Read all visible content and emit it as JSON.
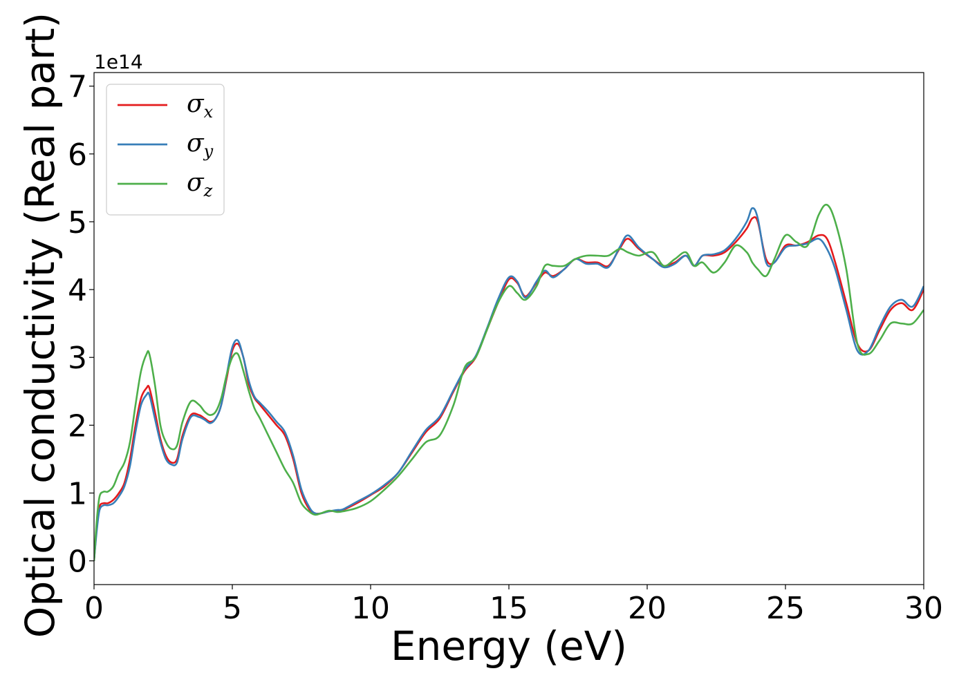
{
  "chart_data": {
    "type": "line",
    "title": "",
    "xlabel": "Energy (eV)",
    "ylabel": "Optical conductivity (Real part)",
    "y_offset_label": "1e14",
    "xlim": [
      0,
      30
    ],
    "ylim": [
      -0.35,
      7.2
    ],
    "xticks": [
      0,
      5,
      10,
      15,
      20,
      25,
      30
    ],
    "yticks": [
      0,
      1,
      2,
      3,
      4,
      5,
      6,
      7
    ],
    "grid": false,
    "legend_position": "top-left",
    "series": [
      {
        "name": "σx",
        "symbol": "σ",
        "subscript": "x",
        "color": "#e41a1c",
        "x": [
          0,
          0.1,
          0.2,
          0.35,
          0.5,
          0.7,
          0.9,
          1.1,
          1.3,
          1.5,
          1.7,
          1.9,
          2.0,
          2.2,
          2.4,
          2.6,
          2.8,
          3.0,
          3.2,
          3.5,
          3.8,
          4.0,
          4.2,
          4.4,
          4.6,
          4.8,
          5.0,
          5.2,
          5.4,
          5.6,
          5.8,
          6.0,
          6.3,
          6.6,
          6.9,
          7.2,
          7.5,
          7.8,
          8.0,
          8.2,
          8.5,
          8.8,
          9.0,
          9.5,
          10.0,
          10.5,
          11.0,
          11.5,
          12.0,
          12.5,
          13.0,
          13.4,
          13.8,
          14.2,
          14.6,
          15.0,
          15.3,
          15.6,
          16.0,
          16.3,
          16.6,
          17.0,
          17.4,
          17.8,
          18.2,
          18.6,
          19.0,
          19.3,
          19.7,
          20.2,
          20.6,
          21.0,
          21.4,
          21.7,
          22.0,
          22.4,
          22.8,
          23.2,
          23.6,
          23.8,
          24.0,
          24.3,
          24.6,
          25.0,
          25.4,
          25.8,
          26.2,
          26.5,
          26.8,
          27.2,
          27.6,
          28.0,
          28.4,
          28.8,
          29.2,
          29.6,
          30.0
        ],
        "y": [
          0.0,
          0.5,
          0.8,
          0.85,
          0.85,
          0.9,
          1.0,
          1.15,
          1.5,
          2.0,
          2.4,
          2.55,
          2.55,
          2.2,
          1.8,
          1.55,
          1.45,
          1.5,
          1.85,
          2.15,
          2.15,
          2.1,
          2.05,
          2.1,
          2.3,
          2.7,
          3.1,
          3.2,
          3.0,
          2.6,
          2.4,
          2.3,
          2.15,
          2.0,
          1.85,
          1.5,
          1.0,
          0.75,
          0.7,
          0.7,
          0.73,
          0.74,
          0.75,
          0.85,
          0.97,
          1.1,
          1.3,
          1.6,
          1.9,
          2.1,
          2.5,
          2.8,
          3.0,
          3.4,
          3.8,
          4.15,
          4.1,
          3.9,
          4.1,
          4.25,
          4.2,
          4.3,
          4.45,
          4.4,
          4.4,
          4.35,
          4.6,
          4.75,
          4.6,
          4.45,
          4.35,
          4.4,
          4.5,
          4.35,
          4.5,
          4.5,
          4.55,
          4.7,
          4.9,
          5.05,
          5.0,
          4.45,
          4.4,
          4.65,
          4.65,
          4.7,
          4.8,
          4.75,
          4.4,
          3.8,
          3.2,
          3.1,
          3.4,
          3.7,
          3.8,
          3.7,
          4.0
        ]
      },
      {
        "name": "σy",
        "symbol": "σ",
        "subscript": "y",
        "color": "#377eb8",
        "x": [
          0,
          0.1,
          0.2,
          0.35,
          0.5,
          0.7,
          0.9,
          1.1,
          1.3,
          1.5,
          1.7,
          1.9,
          2.0,
          2.2,
          2.4,
          2.6,
          2.8,
          3.0,
          3.2,
          3.5,
          3.8,
          4.0,
          4.2,
          4.4,
          4.6,
          4.8,
          5.0,
          5.2,
          5.4,
          5.6,
          5.8,
          6.0,
          6.3,
          6.6,
          6.9,
          7.2,
          7.5,
          7.8,
          8.0,
          8.2,
          8.5,
          8.8,
          9.0,
          9.5,
          10.0,
          10.5,
          11.0,
          11.5,
          12.0,
          12.5,
          13.0,
          13.4,
          13.8,
          14.2,
          14.6,
          15.0,
          15.3,
          15.6,
          16.0,
          16.3,
          16.6,
          17.0,
          17.4,
          17.8,
          18.2,
          18.6,
          19.0,
          19.3,
          19.7,
          20.2,
          20.6,
          21.0,
          21.4,
          21.7,
          22.0,
          22.4,
          22.8,
          23.2,
          23.6,
          23.8,
          24.0,
          24.3,
          24.6,
          25.0,
          25.4,
          25.8,
          26.2,
          26.5,
          26.8,
          27.2,
          27.6,
          28.0,
          28.4,
          28.8,
          29.2,
          29.6,
          30.0
        ],
        "y": [
          0.0,
          0.45,
          0.75,
          0.82,
          0.82,
          0.85,
          0.95,
          1.1,
          1.4,
          1.9,
          2.3,
          2.45,
          2.45,
          2.1,
          1.75,
          1.5,
          1.42,
          1.45,
          1.8,
          2.12,
          2.12,
          2.08,
          2.03,
          2.1,
          2.3,
          2.75,
          3.15,
          3.25,
          3.0,
          2.65,
          2.42,
          2.33,
          2.2,
          2.05,
          1.9,
          1.55,
          1.05,
          0.78,
          0.7,
          0.7,
          0.73,
          0.75,
          0.76,
          0.87,
          0.98,
          1.12,
          1.3,
          1.62,
          1.93,
          2.13,
          2.52,
          2.82,
          3.02,
          3.42,
          3.85,
          4.18,
          4.12,
          3.88,
          4.12,
          4.28,
          4.18,
          4.3,
          4.45,
          4.38,
          4.38,
          4.33,
          4.62,
          4.8,
          4.62,
          4.45,
          4.33,
          4.38,
          4.5,
          4.35,
          4.5,
          4.52,
          4.58,
          4.75,
          5.0,
          5.2,
          5.05,
          4.4,
          4.4,
          4.62,
          4.65,
          4.68,
          4.75,
          4.6,
          4.3,
          3.7,
          3.1,
          3.1,
          3.45,
          3.75,
          3.85,
          3.75,
          4.05
        ]
      },
      {
        "name": "σz",
        "symbol": "σ",
        "subscript": "z",
        "color": "#4daf4a",
        "x": [
          0,
          0.1,
          0.2,
          0.35,
          0.5,
          0.7,
          0.9,
          1.1,
          1.3,
          1.5,
          1.7,
          1.9,
          2.0,
          2.2,
          2.4,
          2.6,
          2.8,
          3.0,
          3.2,
          3.5,
          3.8,
          4.0,
          4.2,
          4.4,
          4.6,
          4.8,
          5.0,
          5.2,
          5.4,
          5.6,
          5.8,
          6.0,
          6.3,
          6.6,
          6.9,
          7.2,
          7.5,
          7.8,
          8.0,
          8.2,
          8.5,
          8.8,
          9.0,
          9.5,
          10.0,
          10.5,
          11.0,
          11.5,
          12.0,
          12.5,
          13.0,
          13.4,
          13.8,
          14.2,
          14.6,
          15.0,
          15.3,
          15.6,
          16.0,
          16.3,
          16.6,
          17.0,
          17.4,
          17.8,
          18.2,
          18.6,
          19.0,
          19.3,
          19.7,
          20.2,
          20.6,
          21.0,
          21.4,
          21.7,
          22.0,
          22.4,
          22.8,
          23.2,
          23.6,
          23.8,
          24.0,
          24.3,
          24.6,
          25.0,
          25.4,
          25.8,
          26.2,
          26.5,
          26.8,
          27.2,
          27.6,
          28.0,
          28.4,
          28.8,
          29.2,
          29.6,
          30.0
        ],
        "y": [
          0.0,
          0.6,
          0.95,
          1.02,
          1.02,
          1.1,
          1.3,
          1.45,
          1.75,
          2.3,
          2.8,
          3.05,
          3.05,
          2.6,
          2.0,
          1.75,
          1.65,
          1.7,
          2.05,
          2.35,
          2.3,
          2.2,
          2.15,
          2.2,
          2.4,
          2.75,
          3.0,
          3.05,
          2.8,
          2.5,
          2.25,
          2.1,
          1.85,
          1.6,
          1.35,
          1.15,
          0.85,
          0.72,
          0.68,
          0.7,
          0.74,
          0.72,
          0.73,
          0.78,
          0.88,
          1.05,
          1.25,
          1.5,
          1.75,
          1.85,
          2.3,
          2.85,
          3.0,
          3.4,
          3.8,
          4.05,
          3.95,
          3.85,
          4.05,
          4.35,
          4.35,
          4.35,
          4.45,
          4.5,
          4.5,
          4.5,
          4.6,
          4.55,
          4.5,
          4.55,
          4.35,
          4.45,
          4.55,
          4.35,
          4.4,
          4.25,
          4.4,
          4.65,
          4.55,
          4.4,
          4.3,
          4.2,
          4.45,
          4.8,
          4.7,
          4.65,
          5.1,
          5.25,
          5.0,
          4.3,
          3.2,
          3.05,
          3.25,
          3.5,
          3.5,
          3.5,
          3.7
        ]
      }
    ]
  }
}
